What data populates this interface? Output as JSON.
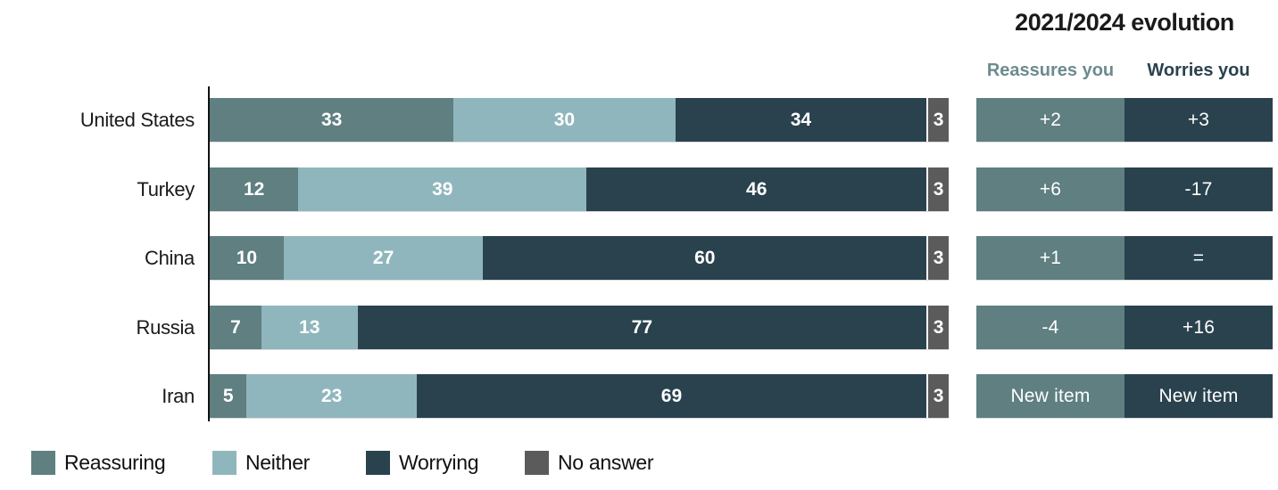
{
  "evolution_panel": {
    "title": "2021/2024 evolution",
    "left_header": "Reassures you",
    "right_header": "Worries you",
    "left_header_color": "#6C8B8E",
    "right_header_color": "#29424E",
    "left_box_color": "#5F7F81",
    "right_box_color": "#29424E"
  },
  "colors": {
    "reassuring": "#5F7F81",
    "neither": "#8FB6BD",
    "worrying": "#29424E",
    "no_answer": "#5B5B5B",
    "axis": "#111111",
    "bar_value_text": "#FFFFFF"
  },
  "legend": [
    {
      "label": "Reassuring",
      "color": "#5F7F81"
    },
    {
      "label": "Neither",
      "color": "#8FB6BD"
    },
    {
      "label": "Worrying",
      "color": "#29424E"
    },
    {
      "label": "No answer",
      "color": "#5B5B5B"
    }
  ],
  "chart_data": {
    "type": "bar",
    "stacked": true,
    "orientation": "horizontal",
    "categories": [
      "United States",
      "Turkey",
      "China",
      "Russia",
      "Iran"
    ],
    "series": [
      {
        "name": "Reassuring",
        "color": "#5F7F81",
        "values": [
          33,
          12,
          10,
          7,
          5
        ]
      },
      {
        "name": "Neither",
        "color": "#8FB6BD",
        "values": [
          30,
          39,
          27,
          13,
          23
        ]
      },
      {
        "name": "Worrying",
        "color": "#29424E",
        "values": [
          34,
          46,
          60,
          77,
          69
        ]
      },
      {
        "name": "No answer",
        "color": "#5B5B5B",
        "values": [
          3,
          3,
          3,
          3,
          3
        ]
      }
    ],
    "xlim": [
      0,
      100
    ],
    "value_labels": "inside-white",
    "legend_position": "bottom",
    "evolution": {
      "title": "2021/2024 evolution",
      "columns": [
        "Reassures you",
        "Worries you"
      ],
      "rows": [
        {
          "country": "United States",
          "reassures": "+2",
          "worries": "+3"
        },
        {
          "country": "Turkey",
          "reassures": "+6",
          "worries": "-17"
        },
        {
          "country": "China",
          "reassures": "+1",
          "worries": "="
        },
        {
          "country": "Russia",
          "reassures": "-4",
          "worries": "+16"
        },
        {
          "country": "Iran",
          "reassures": "New item",
          "worries": "New item"
        }
      ]
    }
  }
}
